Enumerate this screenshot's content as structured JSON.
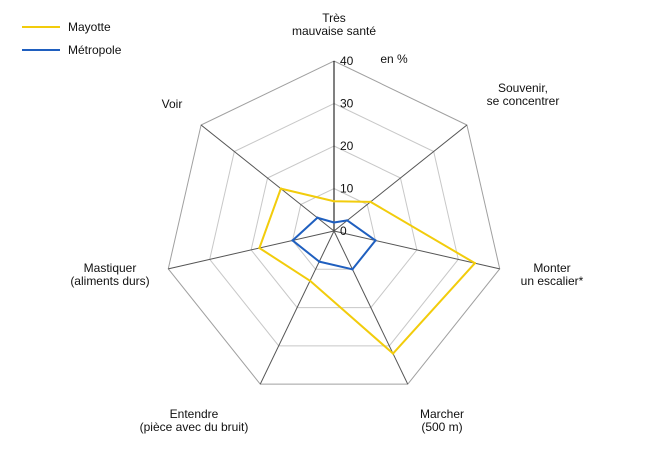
{
  "chart_data": {
    "type": "radar",
    "unit_label": "en %",
    "axes": [
      [
        "Très",
        "mauvaise santé"
      ],
      [
        "Souvenir,",
        "se concentrer"
      ],
      [
        "Monter",
        "un escalier*"
      ],
      [
        "Marcher",
        "(500 m)"
      ],
      [
        "Entendre",
        "(pièce avec du bruit)"
      ],
      [
        "Mastiquer",
        "(aliments durs)"
      ],
      [
        "Voir"
      ]
    ],
    "r_ticks": [
      0,
      10,
      20,
      30,
      40
    ],
    "rlim": [
      0,
      40
    ],
    "series": [
      {
        "name": "Mayotte",
        "color": "#f2cc0c",
        "values": [
          7,
          11,
          34,
          32,
          13,
          18,
          16
        ]
      },
      {
        "name": "Métropole",
        "color": "#1f5fbf",
        "values": [
          2,
          4,
          10,
          10,
          8,
          10,
          5
        ]
      }
    ],
    "grid_color": "#c8c8c8",
    "spoke_color": "#555555",
    "legend_position": "top-left"
  }
}
